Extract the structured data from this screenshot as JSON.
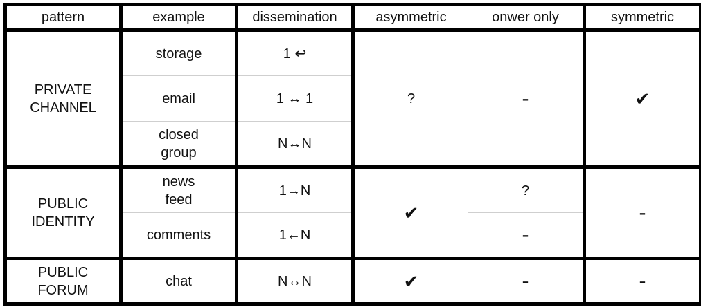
{
  "headers": {
    "pattern": "pattern",
    "example": "example",
    "dissemination": "dissemination",
    "asymmetric": "asymmetric",
    "owner_only": "onwer only",
    "symmetric": "symmetric"
  },
  "private_channel": {
    "pattern": "PRIVATE\nCHANNEL",
    "rows": [
      {
        "example": "storage",
        "dissemination": "1 ↩"
      },
      {
        "example": "email",
        "dissemination": "1 ↔ 1"
      },
      {
        "example": "closed\ngroup",
        "dissemination": "N↔N"
      }
    ],
    "asymmetric": "?",
    "owner_only": "-",
    "symmetric": "✔"
  },
  "public_identity": {
    "pattern": "PUBLIC\nIDENTITY",
    "rows": [
      {
        "example": "news\nfeed",
        "dissemination": "1→N",
        "owner_only": "?"
      },
      {
        "example": "comments",
        "dissemination": "1←N",
        "owner_only": "-"
      }
    ],
    "asymmetric": "✔",
    "symmetric": "-"
  },
  "public_forum": {
    "pattern": "PUBLIC\nFORUM",
    "example": "chat",
    "dissemination": "N↔N",
    "asymmetric": "✔",
    "owner_only": "-",
    "symmetric": "-"
  }
}
